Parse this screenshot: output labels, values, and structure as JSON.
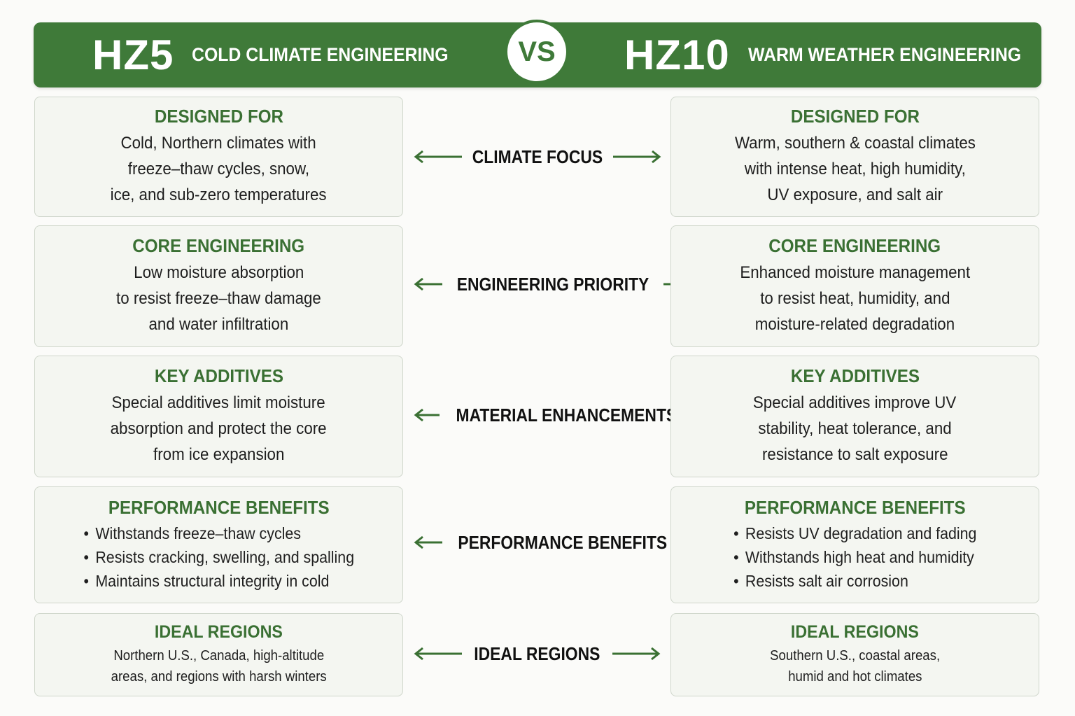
{
  "header": {
    "left_code": "HZ5",
    "left_title": "COLD CLIMATE ENGINEERING",
    "vs": "VS",
    "right_code": "HZ10",
    "right_title": "WARM WEATHER ENGINEERING",
    "bar_color": "#3f7a39"
  },
  "rows": [
    {
      "center_label": "CLIMATE FOCUS",
      "left": {
        "title": "DESIGNED FOR",
        "lines": [
          "Cold, Northern climates with",
          "freeze–thaw cycles, snow,",
          "ice, and sub-zero temperatures"
        ]
      },
      "right": {
        "title": "DESIGNED FOR",
        "lines": [
          "Warm, southern & coastal climates",
          "with intense heat, high humidity,",
          "UV exposure, and salt air"
        ]
      }
    },
    {
      "center_label": "ENGINEERING PRIORITY",
      "left": {
        "title": "CORE ENGINEERING",
        "lines": [
          "Low moisture absorption",
          "to resist freeze–thaw damage",
          "and water infiltration"
        ]
      },
      "right": {
        "title": "CORE ENGINEERING",
        "lines": [
          "Enhanced moisture management",
          "to resist heat, humidity, and",
          "moisture-related degradation"
        ]
      }
    },
    {
      "center_label": "MATERIAL ENHANCEMENTS",
      "left": {
        "title": "KEY ADDITIVES",
        "lines": [
          "Special additives limit moisture",
          "absorption and protect the core",
          "from ice expansion"
        ]
      },
      "right": {
        "title": "KEY ADDITIVES",
        "lines": [
          "Special additives improve UV",
          "stability, heat tolerance, and",
          "resistance to salt exposure"
        ]
      }
    },
    {
      "center_label": "PERFORMANCE BENEFITS",
      "left": {
        "title": "PERFORMANCE BENEFITS",
        "bullets": [
          "Withstands freeze–thaw cycles",
          "Resists cracking, swelling, and spalling",
          "Maintains structural integrity in cold"
        ]
      },
      "right": {
        "title": "PERFORMANCE BENEFITS",
        "bullets": [
          "Resists UV degradation and fading",
          "Withstands high heat and humidity",
          "Resists salt air corrosion"
        ]
      }
    },
    {
      "center_label": "IDEAL REGIONS",
      "left": {
        "title": "IDEAL REGIONS",
        "lines": [
          "Northern U.S., Canada, high-altitude",
          "areas, and regions with harsh winters"
        ]
      },
      "right": {
        "title": "IDEAL REGIONS",
        "lines": [
          "Southern U.S., coastal areas,",
          "humid and hot climates"
        ]
      }
    }
  ],
  "arrow_icon": "double-arrow-icon",
  "accent_color": "#3a7033"
}
